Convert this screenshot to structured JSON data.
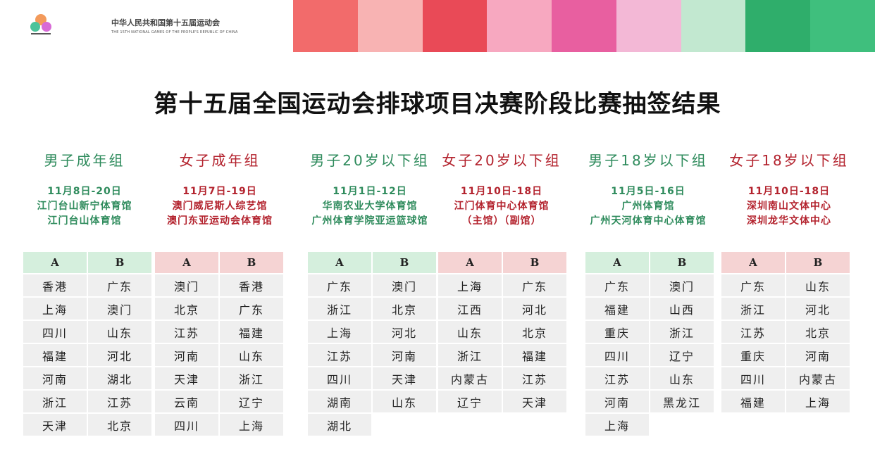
{
  "header": {
    "org_cn": "中华人民共和国第十五届运动会",
    "org_en": "THE 15TH NATIONAL GAMES OF THE PEOPLE'S REPUBLIC OF CHINA"
  },
  "title": "第十五届全国运动会排球项目决赛阶段比赛抽签结果",
  "colors": {
    "green": "#2e8b5c",
    "red": "#b3222d",
    "green_header": "#d5efdd",
    "red_header": "#f5d3d3"
  },
  "groups": [
    {
      "name": "男子成年组",
      "dates": "11月8日-20日",
      "venue1": "江门台山新宁体育馆",
      "venue2": "江门台山体育馆",
      "A": [
        "香港",
        "上海",
        "四川",
        "福建",
        "河南",
        "浙江",
        "天津"
      ],
      "B": [
        "广东",
        "澳门",
        "山东",
        "河北",
        "湖北",
        "江苏",
        "北京"
      ]
    },
    {
      "name": "女子成年组",
      "dates": "11月7日-19日",
      "venue1": "澳门威尼斯人综艺馆",
      "venue2": "澳门东亚运动会体育馆",
      "A": [
        "澳门",
        "北京",
        "江苏",
        "河南",
        "天津",
        "云南",
        "四川"
      ],
      "B": [
        "香港",
        "广东",
        "福建",
        "山东",
        "浙江",
        "辽宁",
        "上海"
      ]
    },
    {
      "name": "男子20岁以下组",
      "dates": "11月1日-12日",
      "venue1": "华南农业大学体育馆",
      "venue2": "广州体育学院亚运篮球馆",
      "A": [
        "广东",
        "浙江",
        "上海",
        "江苏",
        "四川",
        "湖南",
        "湖北"
      ],
      "B": [
        "澳门",
        "北京",
        "河北",
        "河南",
        "天津",
        "山东"
      ]
    },
    {
      "name": "女子20岁以下组",
      "dates": "11月10日-18日",
      "venue1": "江门体育中心体育馆",
      "venue2": "（主馆）（副馆）",
      "A": [
        "上海",
        "江西",
        "山东",
        "浙江",
        "内蒙古",
        "辽宁"
      ],
      "B": [
        "广东",
        "河北",
        "北京",
        "福建",
        "江苏",
        "天津"
      ]
    },
    {
      "name": "男子18岁以下组",
      "dates": "11月5日-16日",
      "venue1": "广州体育馆",
      "venue2": "广州天河体育中心体育馆",
      "A": [
        "广东",
        "福建",
        "重庆",
        "四川",
        "江苏",
        "河南",
        "上海"
      ],
      "B": [
        "澳门",
        "山西",
        "浙江",
        "辽宁",
        "山东",
        "黑龙江"
      ]
    },
    {
      "name": "女子18岁以下组",
      "dates": "11月10日-18日",
      "venue1": "深圳南山文体中心",
      "venue2": "深圳龙华文体中心",
      "A": [
        "广东",
        "浙江",
        "江苏",
        "重庆",
        "四川",
        "福建"
      ],
      "B": [
        "山东",
        "河北",
        "北京",
        "河南",
        "内蒙古",
        "上海"
      ]
    }
  ],
  "pool_labels": {
    "a": "A",
    "b": "B"
  }
}
